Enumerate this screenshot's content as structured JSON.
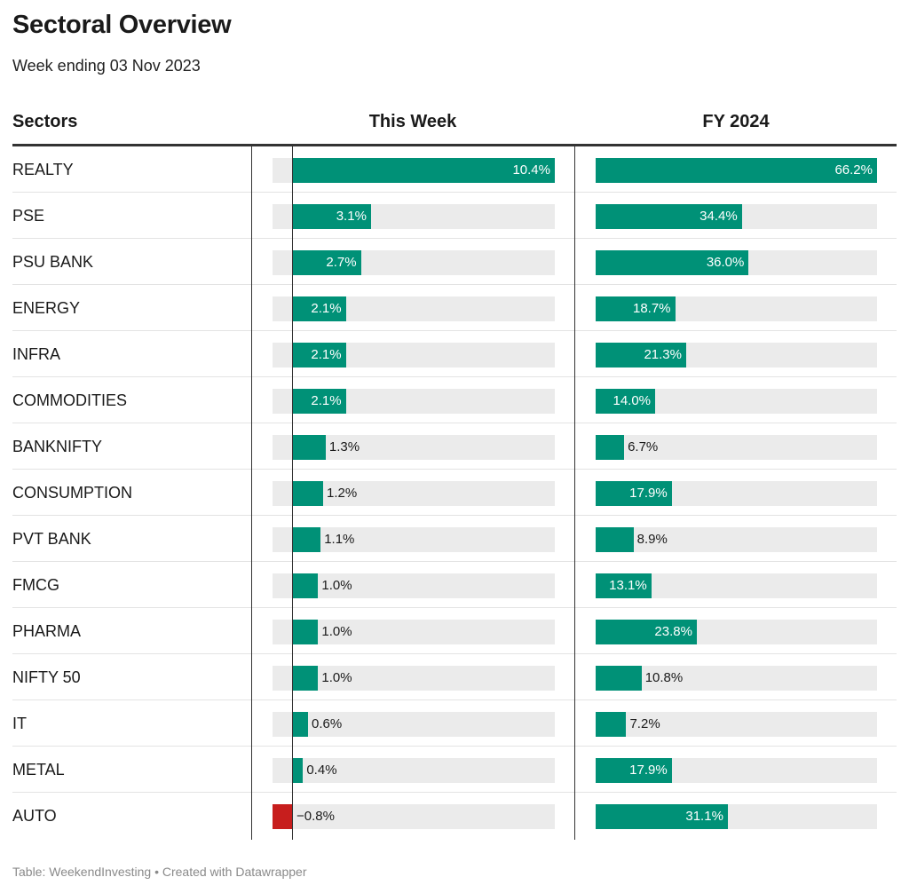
{
  "title": "Sectoral Overview",
  "subtitle": "Week ending 03 Nov 2023",
  "footer": "Table: WeekendInvesting • Created with Datawrapper",
  "colors": {
    "positive": "#009177",
    "negative": "#c71e1d",
    "track": "#ebebeb"
  },
  "chart_data": {
    "type": "table",
    "columns": [
      "Sectors",
      "This Week",
      "FY 2024"
    ],
    "week_range": [
      -0.8,
      10.4
    ],
    "fy_range": [
      0,
      66.2
    ],
    "rows": [
      {
        "sector": "REALTY",
        "week": 10.4,
        "week_label": "10.4%",
        "fy": 66.2,
        "fy_label": "66.2%"
      },
      {
        "sector": "PSE",
        "week": 3.1,
        "week_label": "3.1%",
        "fy": 34.4,
        "fy_label": "34.4%"
      },
      {
        "sector": "PSU BANK",
        "week": 2.7,
        "week_label": "2.7%",
        "fy": 36.0,
        "fy_label": "36.0%"
      },
      {
        "sector": "ENERGY",
        "week": 2.1,
        "week_label": "2.1%",
        "fy": 18.7,
        "fy_label": "18.7%"
      },
      {
        "sector": "INFRA",
        "week": 2.1,
        "week_label": "2.1%",
        "fy": 21.3,
        "fy_label": "21.3%"
      },
      {
        "sector": "COMMODITIES",
        "week": 2.1,
        "week_label": "2.1%",
        "fy": 14.0,
        "fy_label": "14.0%"
      },
      {
        "sector": "BANKNIFTY",
        "week": 1.3,
        "week_label": "1.3%",
        "fy": 6.7,
        "fy_label": "6.7%"
      },
      {
        "sector": "CONSUMPTION",
        "week": 1.2,
        "week_label": "1.2%",
        "fy": 17.9,
        "fy_label": "17.9%"
      },
      {
        "sector": "PVT BANK",
        "week": 1.1,
        "week_label": "1.1%",
        "fy": 8.9,
        "fy_label": "8.9%"
      },
      {
        "sector": "FMCG",
        "week": 1.0,
        "week_label": "1.0%",
        "fy": 13.1,
        "fy_label": "13.1%"
      },
      {
        "sector": "PHARMA",
        "week": 1.0,
        "week_label": "1.0%",
        "fy": 23.8,
        "fy_label": "23.8%"
      },
      {
        "sector": "NIFTY 50",
        "week": 1.0,
        "week_label": "1.0%",
        "fy": 10.8,
        "fy_label": "10.8%"
      },
      {
        "sector": "IT",
        "week": 0.6,
        "week_label": "0.6%",
        "fy": 7.2,
        "fy_label": "7.2%"
      },
      {
        "sector": "METAL",
        "week": 0.4,
        "week_label": "0.4%",
        "fy": 17.9,
        "fy_label": "17.9%"
      },
      {
        "sector": "AUTO",
        "week": -0.8,
        "week_label": "−0.8%",
        "fy": 31.1,
        "fy_label": "31.1%"
      }
    ]
  }
}
